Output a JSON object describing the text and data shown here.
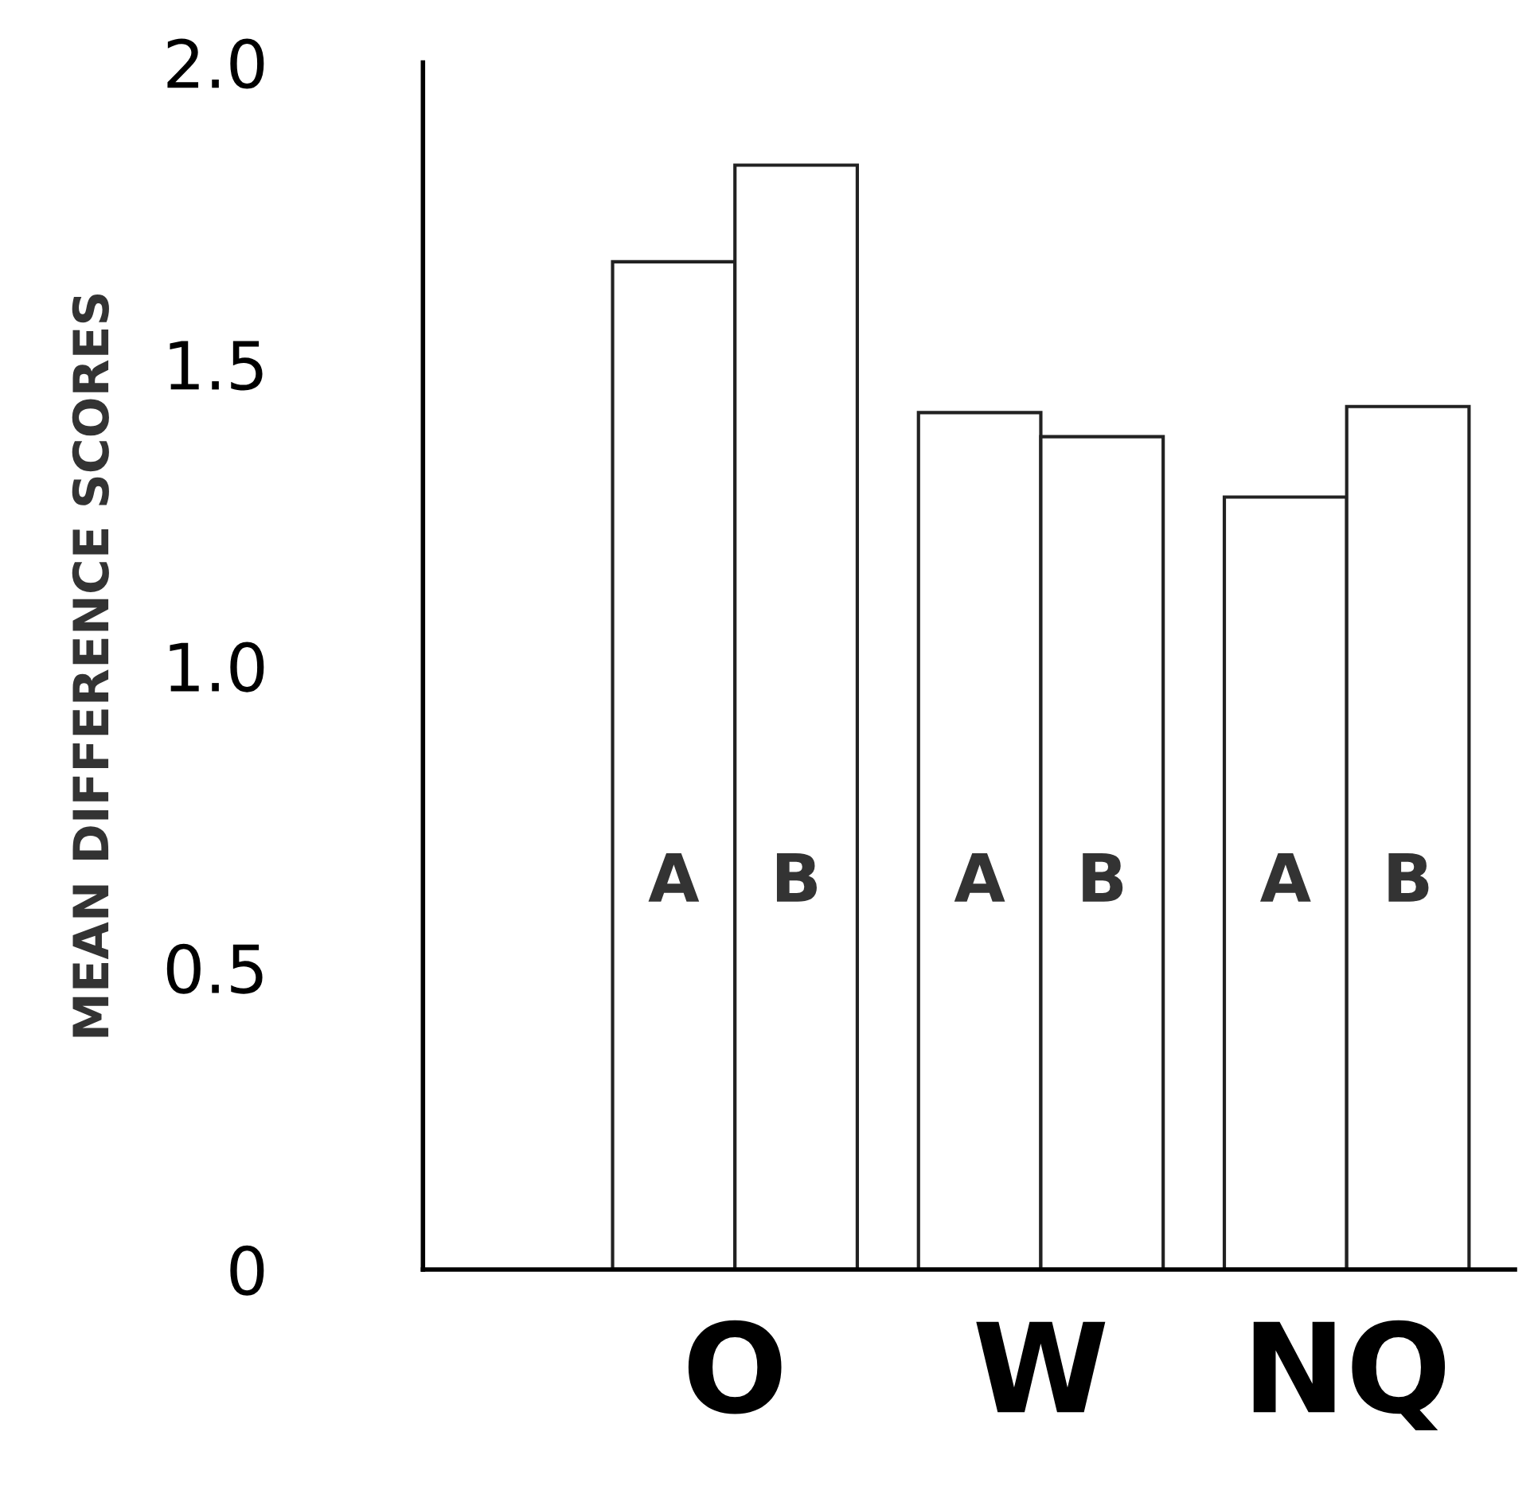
{
  "chart_data": {
    "type": "bar",
    "ylabel": "MEAN DIFFERENCE SCORES",
    "categories": [
      "O",
      "W",
      "NQ"
    ],
    "series": [
      {
        "name": "A",
        "color": "#ffffff",
        "values": [
          1.67,
          1.42,
          1.28
        ]
      },
      {
        "name": "B",
        "color": "#ffffff",
        "values": [
          1.83,
          1.38,
          1.43
        ]
      }
    ],
    "ylim": [
      0,
      2.0
    ],
    "yticks": [
      0,
      0.5,
      {
        "value": 1.0,
        "label": "1.0"
      },
      1.5,
      {
        "value": 2.0,
        "label": "2.0"
      }
    ],
    "grid": false,
    "legend": false
  }
}
